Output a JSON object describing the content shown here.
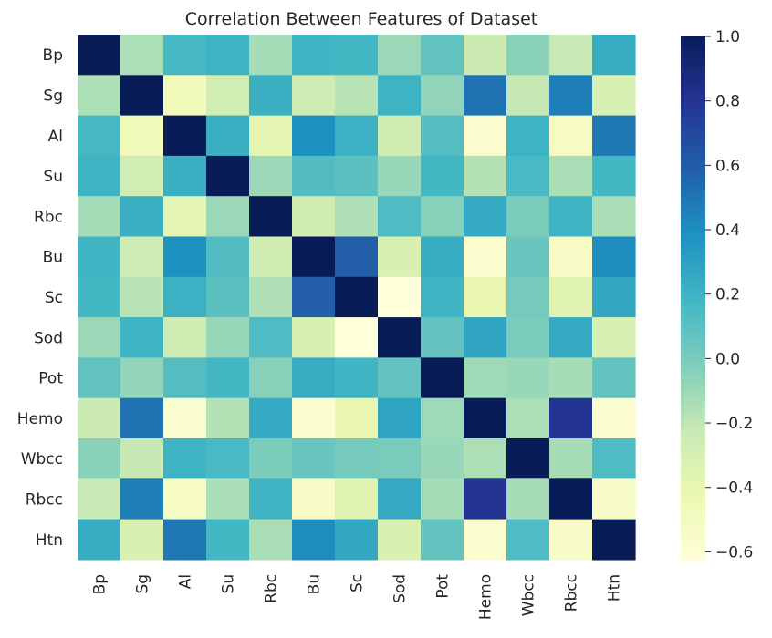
{
  "chart_data": {
    "type": "heatmap",
    "title": "Correlation Between Features of Dataset",
    "xlabel": "",
    "ylabel": "",
    "row_labels": [
      "Bp",
      "Sg",
      "Al",
      "Su",
      "Rbc",
      "Bu",
      "Sc",
      "Sod",
      "Pot",
      "Hemo",
      "Wbcc",
      "Rbcc",
      "Htn"
    ],
    "col_labels": [
      "Bp",
      "Sg",
      "Al",
      "Su",
      "Rbc",
      "Bu",
      "Sc",
      "Sod",
      "Pot",
      "Hemo",
      "Wbcc",
      "Rbcc",
      "Htn"
    ],
    "values": [
      [
        1.0,
        -0.15,
        0.17,
        0.2,
        -0.13,
        0.19,
        0.18,
        -0.1,
        0.08,
        -0.25,
        -0.05,
        -0.23,
        0.24
      ],
      [
        -0.15,
        1.0,
        -0.47,
        -0.28,
        0.22,
        -0.26,
        -0.18,
        0.2,
        -0.07,
        0.51,
        -0.22,
        0.46,
        -0.32
      ],
      [
        0.17,
        -0.47,
        1.0,
        0.22,
        -0.38,
        0.39,
        0.21,
        -0.27,
        0.12,
        -0.57,
        0.2,
        -0.52,
        0.49
      ],
      [
        0.2,
        -0.28,
        0.22,
        1.0,
        -0.1,
        0.13,
        0.1,
        -0.09,
        0.18,
        -0.17,
        0.16,
        -0.14,
        0.18
      ],
      [
        -0.13,
        0.22,
        -0.38,
        -0.1,
        1.0,
        -0.27,
        -0.16,
        0.14,
        -0.04,
        0.25,
        -0.01,
        0.2,
        -0.14
      ],
      [
        0.19,
        -0.26,
        0.39,
        0.13,
        -0.27,
        1.0,
        0.59,
        -0.32,
        0.24,
        -0.58,
        0.05,
        -0.54,
        0.41
      ],
      [
        0.18,
        -0.18,
        0.21,
        0.1,
        -0.16,
        0.59,
        1.0,
        -0.63,
        0.19,
        -0.4,
        0.01,
        -0.35,
        0.26
      ],
      [
        -0.1,
        0.2,
        -0.27,
        -0.09,
        0.14,
        -0.32,
        -0.63,
        1.0,
        0.07,
        0.28,
        0.0,
        0.25,
        -0.32
      ],
      [
        0.08,
        -0.07,
        0.12,
        0.18,
        -0.04,
        0.24,
        0.19,
        0.07,
        1.0,
        -0.11,
        -0.09,
        -0.13,
        0.07
      ],
      [
        -0.25,
        0.51,
        -0.57,
        -0.17,
        0.25,
        -0.58,
        -0.4,
        0.28,
        -0.11,
        1.0,
        -0.15,
        0.8,
        -0.58
      ],
      [
        -0.05,
        -0.22,
        0.2,
        0.16,
        -0.01,
        0.05,
        0.01,
        0.0,
        -0.09,
        -0.15,
        1.0,
        -0.13,
        0.14
      ],
      [
        -0.23,
        0.46,
        -0.52,
        -0.14,
        0.2,
        -0.54,
        -0.35,
        0.25,
        -0.13,
        0.8,
        -0.13,
        1.0,
        -0.55
      ],
      [
        0.24,
        -0.32,
        0.49,
        0.18,
        -0.14,
        0.41,
        0.26,
        -0.32,
        0.07,
        -0.58,
        0.14,
        -0.55,
        1.0
      ]
    ],
    "vmin": -0.63,
    "vmax": 1.0,
    "colormap": "YlGnBu",
    "colorbar_ticks": [
      1.0,
      0.8,
      0.6,
      0.4,
      0.2,
      0.0,
      -0.2,
      -0.4,
      -0.6
    ],
    "colorbar_tick_labels": [
      "1.0",
      "0.8",
      "0.6",
      "0.4",
      "0.2",
      "0.0",
      "−0.2",
      "−0.4",
      "−0.6"
    ],
    "grid": false,
    "legend": "colorbar-right"
  }
}
